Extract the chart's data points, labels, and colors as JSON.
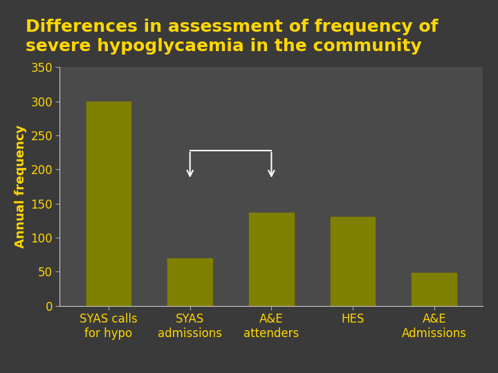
{
  "title": "Differences in assessment of frequency of\nsevere hypoglycaemia in the community",
  "ylabel": "Annual frequency",
  "categories": [
    "SYAS calls\nfor hypo",
    "SYAS\nadmissions",
    "A&E\nattenders",
    "HES",
    "A&E\nAdmissions"
  ],
  "values": [
    300,
    70,
    137,
    130,
    48
  ],
  "bar_color": "#808000",
  "background_color": "#3a3a3a",
  "plot_bg_color": "#4a4a4a",
  "title_color": "#FFD700",
  "tick_color": "#FFD700",
  "axis_label_color": "#FFD700",
  "ylim": [
    0,
    350
  ],
  "yticks": [
    0,
    50,
    100,
    150,
    200,
    250,
    300,
    350
  ],
  "title_fontsize": 18,
  "ylabel_fontsize": 13,
  "tick_fontsize": 12,
  "xlabel_fontsize": 12
}
